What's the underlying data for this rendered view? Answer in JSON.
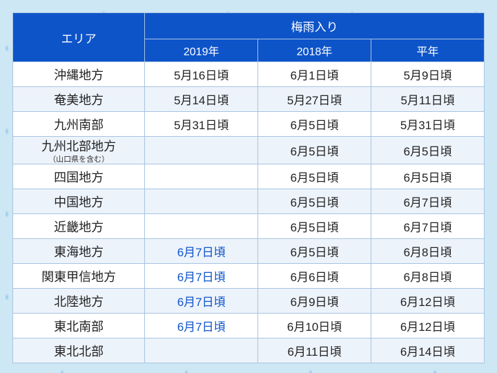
{
  "colors": {
    "header_bg": "#0e54c9",
    "header_text": "#ffffff",
    "row_odd_bg": "#ffffff",
    "row_even_bg": "#edf3fb",
    "border": "#a8c3e0",
    "text": "#222222",
    "highlight_text": "#0e54c9",
    "page_bg": "#cde7f5"
  },
  "typography": {
    "header_fontsize_pt": 13,
    "subheader_fontsize_pt": 12,
    "cell_fontsize_pt": 13,
    "area_sub_fontsize_pt": 8
  },
  "table": {
    "type": "table",
    "header": {
      "area_label": "エリア",
      "group_label": "梅雨入り",
      "columns": [
        "2019年",
        "2018年",
        "平年"
      ]
    },
    "column_widths_pct": [
      28,
      24,
      24,
      24
    ],
    "rows": [
      {
        "area": "沖縄地方",
        "area_sub": "",
        "y2019": "5月16日頃",
        "y2019_hl": false,
        "y2018": "6月1日頃",
        "avg": "5月9日頃"
      },
      {
        "area": "奄美地方",
        "area_sub": "",
        "y2019": "5月14日頃",
        "y2019_hl": false,
        "y2018": "5月27日頃",
        "avg": "5月11日頃"
      },
      {
        "area": "九州南部",
        "area_sub": "",
        "y2019": "5月31日頃",
        "y2019_hl": false,
        "y2018": "6月5日頃",
        "avg": "5月31日頃"
      },
      {
        "area": "九州北部地方",
        "area_sub": "（山口県を含む）",
        "y2019": "",
        "y2019_hl": false,
        "y2018": "6月5日頃",
        "avg": "6月5日頃"
      },
      {
        "area": "四国地方",
        "area_sub": "",
        "y2019": "",
        "y2019_hl": false,
        "y2018": "6月5日頃",
        "avg": "6月5日頃"
      },
      {
        "area": "中国地方",
        "area_sub": "",
        "y2019": "",
        "y2019_hl": false,
        "y2018": "6月5日頃",
        "avg": "6月7日頃"
      },
      {
        "area": "近畿地方",
        "area_sub": "",
        "y2019": "",
        "y2019_hl": false,
        "y2018": "6月5日頃",
        "avg": "6月7日頃"
      },
      {
        "area": "東海地方",
        "area_sub": "",
        "y2019": "6月7日頃",
        "y2019_hl": true,
        "y2018": "6月5日頃",
        "avg": "6月8日頃"
      },
      {
        "area": "関東甲信地方",
        "area_sub": "",
        "y2019": "6月7日頃",
        "y2019_hl": true,
        "y2018": "6月6日頃",
        "avg": "6月8日頃"
      },
      {
        "area": "北陸地方",
        "area_sub": "",
        "y2019": "6月7日頃",
        "y2019_hl": true,
        "y2018": "6月9日頃",
        "avg": "6月12日頃"
      },
      {
        "area": "東北南部",
        "area_sub": "",
        "y2019": "6月7日頃",
        "y2019_hl": true,
        "y2018": "6月10日頃",
        "avg": "6月12日頃"
      },
      {
        "area": "東北北部",
        "area_sub": "",
        "y2019": "",
        "y2019_hl": false,
        "y2018": "6月11日頃",
        "avg": "6月14日頃"
      }
    ]
  }
}
